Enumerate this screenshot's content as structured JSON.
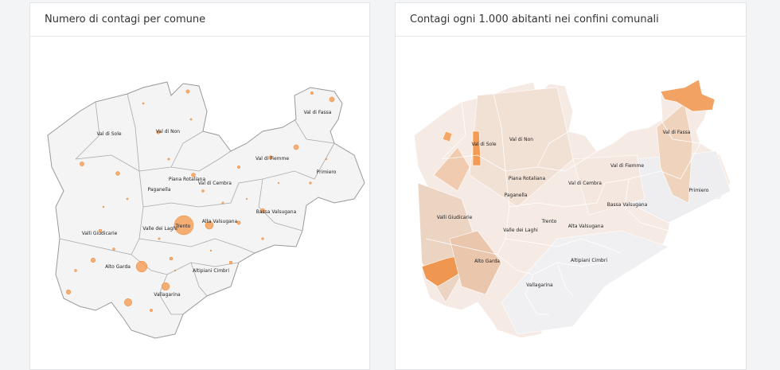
{
  "panels": [
    {
      "title": "Numero di contagi per comune",
      "labels": [
        "Val di Sole",
        "Val di Non",
        "Val di Fassa",
        "Val di Fiemme",
        "Primiero",
        "Piana Rotaliana",
        "Paganella",
        "Val di Cembra",
        "Valle dei Laghi",
        "Trento",
        "Alta Valsugana",
        "Bassa Valsugana",
        "Valli Giudicarie",
        "Alto Garda",
        "Altipiani Cimbri",
        "Vallagarina"
      ],
      "bubbles": [
        900,
        300,
        160,
        150,
        140,
        60,
        60,
        55,
        50,
        50,
        45,
        40,
        40,
        35,
        35,
        30,
        30,
        25,
        25,
        25,
        20,
        20,
        20,
        15,
        15,
        15,
        12,
        12,
        10,
        10,
        10,
        8,
        8,
        8,
        6,
        6,
        6,
        5,
        5,
        5
      ]
    },
    {
      "title": "Contagi ogni 1.000 abitanti nei confini comunali",
      "labels": [
        "Val di Sole",
        "Val di Non",
        "Val di Fassa",
        "Val di Fiemme",
        "Primiero",
        "Piana Rotaliana",
        "Paganella",
        "Val di Cembra",
        "Bassa Valsugana",
        "Trento",
        "Valle dei Laghi",
        "Alta Valsugana",
        "Valli Giudicarie",
        "Alto Garda",
        "Altipiani Cimbri",
        "Vallagarina"
      ]
    }
  ]
}
